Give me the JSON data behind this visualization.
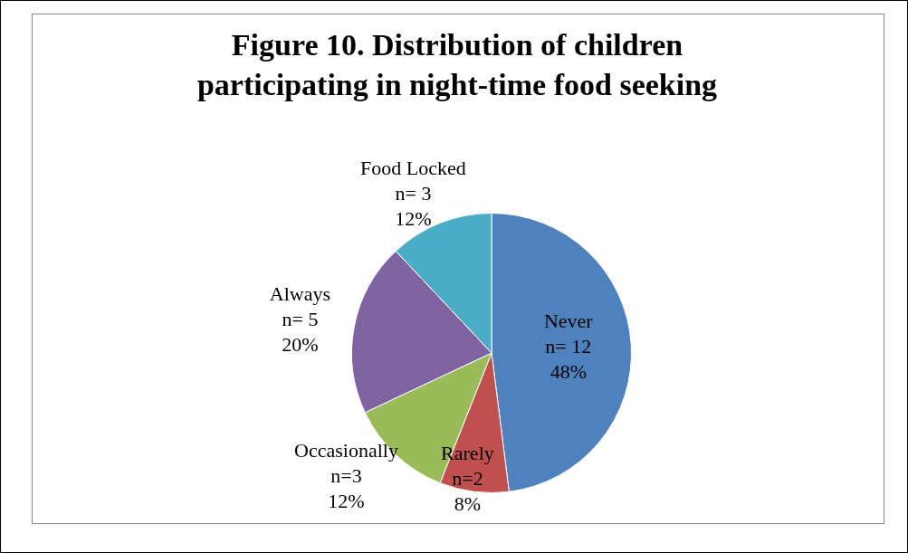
{
  "chart_data": {
    "type": "pie",
    "title": "Figure 10. Distribution of children participating in night-time food seeking",
    "categories": [
      "Never",
      "Rarely",
      "Occasionally",
      "Always",
      "Food Locked"
    ],
    "values": [
      12,
      2,
      3,
      5,
      3
    ],
    "colors": [
      "#4f81bd",
      "#c0504d",
      "#9bbb59",
      "#8064a2",
      "#4bacc6"
    ],
    "value_labels": [
      "n= 12\n48%",
      "n=2\n8%",
      "n=3\n12%",
      "n= 5\n20%",
      "n= 3\n12%"
    ],
    "legend": false
  }
}
